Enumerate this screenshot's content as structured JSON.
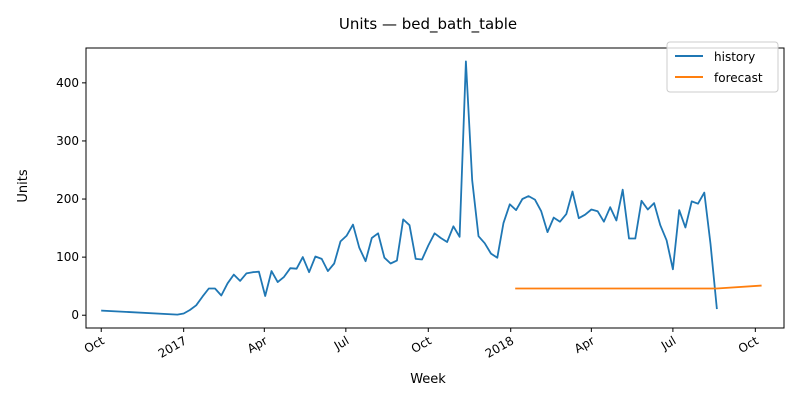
{
  "chart_data": {
    "type": "line",
    "title": "Units — bed_bath_table",
    "xlabel": "Week",
    "ylabel": "Units",
    "ylim": [
      -22,
      460
    ],
    "xlim": [
      "2016-09-14",
      "2018-11-02"
    ],
    "grid": false,
    "legend_position": "top-right",
    "x_ticks": [
      {
        "date": "2016-10-01",
        "label": "Oct"
      },
      {
        "date": "2017-01-01",
        "label": "2017"
      },
      {
        "date": "2017-04-01",
        "label": "Apr"
      },
      {
        "date": "2017-07-01",
        "label": "Jul"
      },
      {
        "date": "2017-10-01",
        "label": "Oct"
      },
      {
        "date": "2018-01-01",
        "label": "2018"
      },
      {
        "date": "2018-04-01",
        "label": "Apr"
      },
      {
        "date": "2018-07-01",
        "label": "Jul"
      },
      {
        "date": "2018-10-01",
        "label": "Oct"
      }
    ],
    "y_ticks": [
      0,
      100,
      200,
      300,
      400
    ],
    "series": [
      {
        "name": "history",
        "color": "#1f77b4",
        "points": [
          [
            "2016-10-02",
            8
          ],
          [
            "2016-12-25",
            1
          ],
          [
            "2017-01-01",
            3
          ],
          [
            "2017-01-08",
            9
          ],
          [
            "2017-01-15",
            17
          ],
          [
            "2017-01-22",
            32
          ],
          [
            "2017-01-29",
            46
          ],
          [
            "2017-02-05",
            46
          ],
          [
            "2017-02-12",
            34
          ],
          [
            "2017-02-19",
            55
          ],
          [
            "2017-02-26",
            70
          ],
          [
            "2017-03-05",
            59
          ],
          [
            "2017-03-12",
            72
          ],
          [
            "2017-03-19",
            74
          ],
          [
            "2017-03-26",
            75
          ],
          [
            "2017-04-02",
            33
          ],
          [
            "2017-04-09",
            76
          ],
          [
            "2017-04-16",
            57
          ],
          [
            "2017-04-23",
            66
          ],
          [
            "2017-04-30",
            81
          ],
          [
            "2017-05-07",
            80
          ],
          [
            "2017-05-14",
            100
          ],
          [
            "2017-05-21",
            74
          ],
          [
            "2017-05-28",
            101
          ],
          [
            "2017-06-04",
            97
          ],
          [
            "2017-06-11",
            76
          ],
          [
            "2017-06-18",
            89
          ],
          [
            "2017-06-25",
            127
          ],
          [
            "2017-07-02",
            137
          ],
          [
            "2017-07-09",
            156
          ],
          [
            "2017-07-16",
            116
          ],
          [
            "2017-07-23",
            93
          ],
          [
            "2017-07-30",
            133
          ],
          [
            "2017-08-06",
            141
          ],
          [
            "2017-08-13",
            99
          ],
          [
            "2017-08-20",
            89
          ],
          [
            "2017-08-27",
            94
          ],
          [
            "2017-09-03",
            165
          ],
          [
            "2017-09-10",
            155
          ],
          [
            "2017-09-17",
            97
          ],
          [
            "2017-09-24",
            96
          ],
          [
            "2017-10-01",
            120
          ],
          [
            "2017-10-08",
            141
          ],
          [
            "2017-10-15",
            133
          ],
          [
            "2017-10-22",
            126
          ],
          [
            "2017-10-29",
            153
          ],
          [
            "2017-11-05",
            135
          ],
          [
            "2017-11-12",
            437
          ],
          [
            "2017-11-19",
            232
          ],
          [
            "2017-11-26",
            136
          ],
          [
            "2017-12-03",
            124
          ],
          [
            "2017-12-10",
            106
          ],
          [
            "2017-12-17",
            99
          ],
          [
            "2017-12-24",
            159
          ],
          [
            "2017-12-31",
            191
          ],
          [
            "2018-01-07",
            181
          ],
          [
            "2018-01-14",
            200
          ],
          [
            "2018-01-21",
            205
          ],
          [
            "2018-01-28",
            199
          ],
          [
            "2018-02-04",
            179
          ],
          [
            "2018-02-11",
            143
          ],
          [
            "2018-02-18",
            168
          ],
          [
            "2018-02-25",
            161
          ],
          [
            "2018-03-04",
            174
          ],
          [
            "2018-03-11",
            213
          ],
          [
            "2018-03-18",
            167
          ],
          [
            "2018-03-25",
            173
          ],
          [
            "2018-04-01",
            182
          ],
          [
            "2018-04-08",
            179
          ],
          [
            "2018-04-15",
            161
          ],
          [
            "2018-04-22",
            186
          ],
          [
            "2018-04-29",
            163
          ],
          [
            "2018-05-06",
            216
          ],
          [
            "2018-05-13",
            132
          ],
          [
            "2018-05-20",
            132
          ],
          [
            "2018-05-27",
            197
          ],
          [
            "2018-06-03",
            182
          ],
          [
            "2018-06-10",
            193
          ],
          [
            "2018-06-17",
            155
          ],
          [
            "2018-06-24",
            129
          ],
          [
            "2018-07-01",
            79
          ],
          [
            "2018-07-08",
            181
          ],
          [
            "2018-07-15",
            151
          ],
          [
            "2018-07-22",
            196
          ],
          [
            "2018-07-29",
            192
          ],
          [
            "2018-08-05",
            211
          ],
          [
            "2018-08-12",
            123
          ],
          [
            "2018-08-19",
            12
          ]
        ]
      },
      {
        "name": "forecast",
        "color": "#ff7f0e",
        "points": [
          [
            "2018-01-07",
            46
          ],
          [
            "2018-08-19",
            46
          ],
          [
            "2018-10-07",
            51
          ]
        ]
      }
    ]
  }
}
